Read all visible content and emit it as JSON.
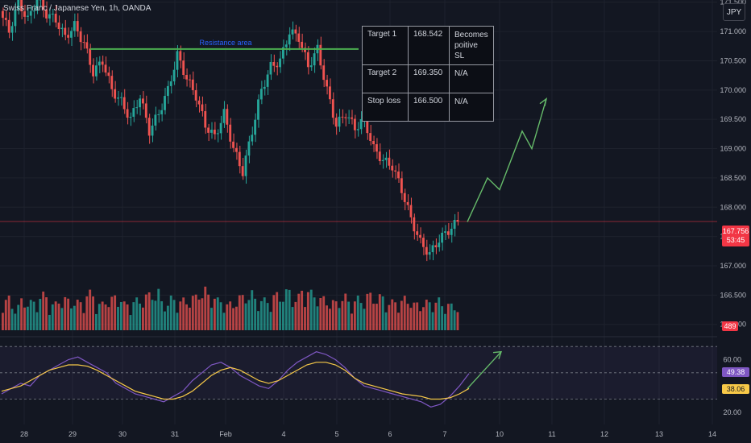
{
  "header": {
    "symbol": "Swiss Franc / Japanese Yen, 1h, OANDA",
    "currency_button": "JPY"
  },
  "colors": {
    "bull": "#26a69a",
    "bear": "#ef5350",
    "resistance": "#4caf50",
    "projection": "#66bb6a",
    "rsi": "#7e57c2",
    "rsi_ma": "#f7c948",
    "price_tag": "#f23645",
    "volume_tag": "#f23645",
    "rsi_tag": "#7e57c2",
    "rsi_ma_tag": "#f7c948"
  },
  "annotation": {
    "resistance_label": "Resistance area"
  },
  "targets_table": {
    "rows": [
      {
        "label": "Target 1",
        "price": "168.542",
        "note": "Becomes poitive SL"
      },
      {
        "label": "Target 2",
        "price": "169.350",
        "note": "N/A"
      },
      {
        "label": "Stop loss",
        "price": "166.500",
        "note": "N/A"
      }
    ]
  },
  "chart_data": {
    "type": "candlestick",
    "price_axis": {
      "ylim": [
        165.9,
        171.4
      ],
      "ticks": [
        "171.500",
        "171.000",
        "170.500",
        "170.000",
        "169.500",
        "169.000",
        "168.500",
        "168.000",
        "167.500",
        "167.000",
        "166.500",
        "166.000"
      ],
      "current_price": "167.756",
      "countdown": "53:45"
    },
    "volume": {
      "last_label": "489"
    },
    "rsi": {
      "ticks": [
        "60.00",
        "20.00"
      ],
      "rsi_value": "49.38",
      "ma_value": "38.06",
      "upper_band": 70,
      "lower_band": 30,
      "ylim": [
        15,
        75
      ]
    },
    "x_ticks": [
      "28",
      "29",
      "30",
      "31",
      "Feb",
      "4",
      "5",
      "6",
      "7",
      "10",
      "11",
      "12",
      "13",
      "14"
    ],
    "resistance_level": 170.7,
    "projection_price": [
      [
        167.75,
        168.5
      ],
      [
        168.5,
        168.3
      ],
      [
        168.3,
        169.3
      ],
      [
        169.3,
        169.0
      ],
      [
        169.0,
        169.85
      ]
    ],
    "projection_rsi": [
      [
        38,
        66
      ]
    ],
    "price_path": [
      171.35,
      171.0,
      171.5,
      171.2,
      171.55,
      171.3,
      171.2,
      170.9,
      171.1,
      170.8,
      170.3,
      170.5,
      170.0,
      169.8,
      169.5,
      169.9,
      169.3,
      169.6,
      170.0,
      170.6,
      170.2,
      169.9,
      169.4,
      169.2,
      169.6,
      169.0,
      168.6,
      169.3,
      170.0,
      170.4,
      170.5,
      171.0,
      170.9,
      170.4,
      170.7,
      170.0,
      169.4,
      169.6,
      169.35,
      169.5,
      169.0,
      168.8,
      168.7,
      168.3,
      167.8,
      167.4,
      167.2,
      167.45,
      167.6,
      167.756
    ],
    "volume_path": [
      30,
      36,
      28,
      34,
      32,
      40,
      30,
      36,
      34,
      32,
      42,
      30,
      36,
      38,
      30,
      34,
      40,
      44,
      32,
      36,
      34,
      38,
      46,
      40,
      34,
      30,
      38,
      42,
      36,
      34,
      40,
      44,
      38,
      46,
      42,
      36,
      32,
      38,
      34,
      36,
      40,
      38,
      32,
      34,
      36,
      30,
      32,
      34,
      30,
      28
    ],
    "rsi_path": [
      34,
      38,
      42,
      40,
      48,
      52,
      56,
      60,
      62,
      58,
      54,
      50,
      42,
      38,
      34,
      32,
      30,
      28,
      32,
      36,
      44,
      50,
      56,
      58,
      54,
      48,
      44,
      40,
      38,
      44,
      52,
      58,
      62,
      66,
      64,
      60,
      54,
      46,
      40,
      38,
      36,
      34,
      32,
      30,
      28,
      24,
      26,
      32,
      40,
      49.38
    ],
    "rsi_ma_path": [
      36,
      38,
      40,
      44,
      48,
      52,
      54,
      56,
      56,
      55,
      52,
      48,
      44,
      40,
      36,
      34,
      32,
      30,
      30,
      32,
      36,
      42,
      48,
      52,
      54,
      52,
      48,
      44,
      42,
      44,
      48,
      52,
      56,
      58,
      58,
      56,
      52,
      46,
      42,
      40,
      38,
      36,
      34,
      33,
      32,
      30,
      30,
      31,
      34,
      38.06
    ]
  }
}
